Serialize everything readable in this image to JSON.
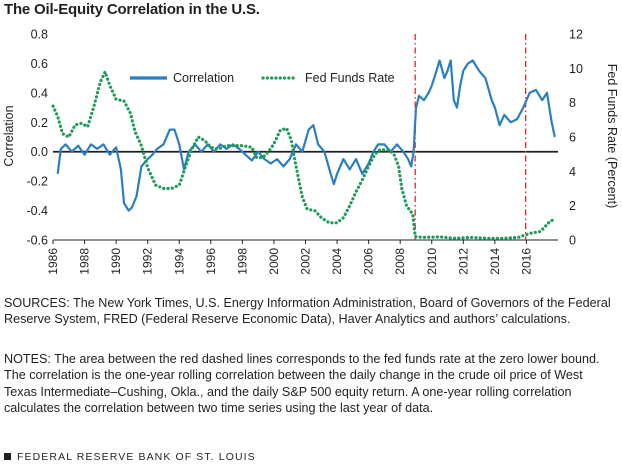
{
  "title": "The Oil-Equity Correlation in the U.S.",
  "chart_data": {
    "type": "line",
    "x_range": [
      1986,
      2018
    ],
    "x_ticks": [
      "1986",
      "1988",
      "1990",
      "1992",
      "1994",
      "1996",
      "1998",
      "2000",
      "2002",
      "2004",
      "2006",
      "2008",
      "2010",
      "2012",
      "2014",
      "2016"
    ],
    "y_left": {
      "label": "Correlation",
      "range": [
        -0.6,
        0.8
      ],
      "ticks": [
        "-0.6",
        "-0.4",
        "-0.2",
        "0.0",
        "0.2",
        "0.4",
        "0.6",
        "0.8"
      ]
    },
    "y_right": {
      "label": "Fed Funds Rate (Percent)",
      "range": [
        0,
        12
      ],
      "ticks": [
        "0",
        "2",
        "4",
        "6",
        "8",
        "10",
        "12"
      ]
    },
    "zero_line": 0.0,
    "vlines": [
      2008.95,
      2015.95
    ],
    "colors": {
      "correlation": "#2a7fc1",
      "fed_funds": "#1f9a5a",
      "vline": "#d9262c",
      "axis": "#231f20"
    },
    "legend": {
      "position": "top",
      "correlation": "Correlation",
      "fed_funds": "Fed Funds Rate"
    },
    "series": [
      {
        "name": "Correlation",
        "axis": "left",
        "style": "solid",
        "points": [
          [
            1986.3,
            -0.15
          ],
          [
            1986.5,
            0.02
          ],
          [
            1986.8,
            0.05
          ],
          [
            1987.2,
            0.0
          ],
          [
            1987.6,
            0.04
          ],
          [
            1988.0,
            -0.02
          ],
          [
            1988.4,
            0.05
          ],
          [
            1988.8,
            0.02
          ],
          [
            1989.2,
            0.05
          ],
          [
            1989.6,
            -0.02
          ],
          [
            1990.0,
            0.03
          ],
          [
            1990.3,
            -0.12
          ],
          [
            1990.5,
            -0.35
          ],
          [
            1990.8,
            -0.4
          ],
          [
            1991.0,
            -0.38
          ],
          [
            1991.3,
            -0.3
          ],
          [
            1991.6,
            -0.1
          ],
          [
            1992.0,
            -0.05
          ],
          [
            1992.3,
            -0.02
          ],
          [
            1992.6,
            0.02
          ],
          [
            1993.0,
            0.05
          ],
          [
            1993.4,
            0.15
          ],
          [
            1993.7,
            0.15
          ],
          [
            1994.0,
            0.05
          ],
          [
            1994.3,
            -0.12
          ],
          [
            1994.6,
            0.0
          ],
          [
            1995.0,
            0.05
          ],
          [
            1995.4,
            0.0
          ],
          [
            1995.8,
            0.05
          ],
          [
            1996.2,
            0.0
          ],
          [
            1996.6,
            0.05
          ],
          [
            1997.0,
            0.02
          ],
          [
            1997.4,
            0.05
          ],
          [
            1997.8,
            0.02
          ],
          [
            1998.2,
            -0.02
          ],
          [
            1998.6,
            -0.06
          ],
          [
            1999.0,
            0.0
          ],
          [
            1999.4,
            -0.05
          ],
          [
            1999.8,
            -0.08
          ],
          [
            2000.2,
            -0.05
          ],
          [
            2000.6,
            -0.1
          ],
          [
            2001.0,
            -0.05
          ],
          [
            2001.4,
            0.05
          ],
          [
            2001.8,
            0.0
          ],
          [
            2002.2,
            0.15
          ],
          [
            2002.5,
            0.18
          ],
          [
            2002.8,
            0.05
          ],
          [
            2003.2,
            0.0
          ],
          [
            2003.6,
            -0.15
          ],
          [
            2003.8,
            -0.22
          ],
          [
            2004.0,
            -0.15
          ],
          [
            2004.4,
            -0.05
          ],
          [
            2004.8,
            -0.12
          ],
          [
            2005.2,
            -0.05
          ],
          [
            2005.6,
            -0.15
          ],
          [
            2006.0,
            -0.08
          ],
          [
            2006.3,
            0.0
          ],
          [
            2006.6,
            0.05
          ],
          [
            2007.0,
            0.05
          ],
          [
            2007.4,
            0.0
          ],
          [
            2007.8,
            0.05
          ],
          [
            2008.2,
            0.0
          ],
          [
            2008.5,
            -0.05
          ],
          [
            2008.7,
            -0.1
          ],
          [
            2008.85,
            0.0
          ],
          [
            2009.0,
            0.3
          ],
          [
            2009.2,
            0.38
          ],
          [
            2009.5,
            0.35
          ],
          [
            2009.8,
            0.4
          ],
          [
            2010.0,
            0.45
          ],
          [
            2010.3,
            0.55
          ],
          [
            2010.5,
            0.62
          ],
          [
            2010.8,
            0.5
          ],
          [
            2011.0,
            0.55
          ],
          [
            2011.2,
            0.62
          ],
          [
            2011.4,
            0.35
          ],
          [
            2011.6,
            0.3
          ],
          [
            2011.8,
            0.45
          ],
          [
            2012.0,
            0.55
          ],
          [
            2012.3,
            0.6
          ],
          [
            2012.6,
            0.62
          ],
          [
            2013.0,
            0.55
          ],
          [
            2013.4,
            0.5
          ],
          [
            2013.8,
            0.35
          ],
          [
            2014.0,
            0.3
          ],
          [
            2014.3,
            0.18
          ],
          [
            2014.6,
            0.25
          ],
          [
            2015.0,
            0.2
          ],
          [
            2015.4,
            0.22
          ],
          [
            2015.8,
            0.3
          ],
          [
            2016.2,
            0.4
          ],
          [
            2016.6,
            0.42
          ],
          [
            2017.0,
            0.35
          ],
          [
            2017.3,
            0.4
          ],
          [
            2017.6,
            0.2
          ],
          [
            2017.8,
            0.1
          ]
        ]
      },
      {
        "name": "Fed Funds Rate",
        "axis": "right",
        "style": "dotted",
        "points": [
          [
            1986.0,
            7.8
          ],
          [
            1986.3,
            7.2
          ],
          [
            1986.6,
            6.2
          ],
          [
            1987.0,
            6.0
          ],
          [
            1987.4,
            6.7
          ],
          [
            1987.8,
            6.8
          ],
          [
            1988.2,
            6.6
          ],
          [
            1988.6,
            7.8
          ],
          [
            1989.0,
            9.2
          ],
          [
            1989.3,
            9.8
          ],
          [
            1989.6,
            9.0
          ],
          [
            1990.0,
            8.2
          ],
          [
            1990.5,
            8.1
          ],
          [
            1990.9,
            7.4
          ],
          [
            1991.2,
            6.3
          ],
          [
            1991.6,
            5.5
          ],
          [
            1992.0,
            4.2
          ],
          [
            1992.5,
            3.2
          ],
          [
            1993.0,
            3.0
          ],
          [
            1993.5,
            3.0
          ],
          [
            1994.0,
            3.2
          ],
          [
            1994.4,
            4.3
          ],
          [
            1994.8,
            5.3
          ],
          [
            1995.2,
            6.0
          ],
          [
            1995.6,
            5.8
          ],
          [
            1996.0,
            5.4
          ],
          [
            1996.5,
            5.3
          ],
          [
            1997.0,
            5.5
          ],
          [
            1997.5,
            5.5
          ],
          [
            1998.0,
            5.5
          ],
          [
            1998.6,
            5.4
          ],
          [
            1998.9,
            4.8
          ],
          [
            1999.3,
            4.8
          ],
          [
            1999.7,
            5.2
          ],
          [
            2000.0,
            5.6
          ],
          [
            2000.4,
            6.4
          ],
          [
            2000.8,
            6.5
          ],
          [
            2001.1,
            5.8
          ],
          [
            2001.4,
            4.3
          ],
          [
            2001.8,
            2.5
          ],
          [
            2002.1,
            1.8
          ],
          [
            2002.6,
            1.7
          ],
          [
            2003.0,
            1.3
          ],
          [
            2003.5,
            1.0
          ],
          [
            2004.0,
            1.0
          ],
          [
            2004.4,
            1.3
          ],
          [
            2004.8,
            2.0
          ],
          [
            2005.2,
            2.8
          ],
          [
            2005.6,
            3.5
          ],
          [
            2006.0,
            4.3
          ],
          [
            2006.4,
            5.0
          ],
          [
            2006.7,
            5.25
          ],
          [
            2007.3,
            5.25
          ],
          [
            2007.6,
            5.0
          ],
          [
            2007.9,
            4.3
          ],
          [
            2008.1,
            3.0
          ],
          [
            2008.4,
            2.0
          ],
          [
            2008.8,
            1.5
          ],
          [
            2008.95,
            0.2
          ],
          [
            2009.5,
            0.15
          ],
          [
            2010.5,
            0.18
          ],
          [
            2011.5,
            0.1
          ],
          [
            2012.5,
            0.15
          ],
          [
            2013.5,
            0.1
          ],
          [
            2014.5,
            0.1
          ],
          [
            2015.5,
            0.15
          ],
          [
            2015.95,
            0.3
          ],
          [
            2016.3,
            0.4
          ],
          [
            2016.9,
            0.5
          ],
          [
            2017.2,
            0.8
          ],
          [
            2017.5,
            1.1
          ],
          [
            2017.8,
            1.2
          ]
        ]
      }
    ]
  },
  "sources": "SOURCES: The New York Times, U.S. Energy Information Administration, Board of Governors of the Federal Reserve System, FRED (Federal Reserve Economic Data), Haver Analytics and authors’ calculations.",
  "notes": "NOTES: The area between the red dashed lines corresponds to the fed funds rate at the zero lower bound. The correlation is the one-year rolling correlation between the daily change in the crude oil price of West Texas Intermediate–Cushing, Okla., and the daily S&P 500 equity return. A one-year rolling correlation calculates the correlation between two time series using the last year of data.",
  "footer": "FEDERAL RESERVE BANK OF ST. LOUIS"
}
